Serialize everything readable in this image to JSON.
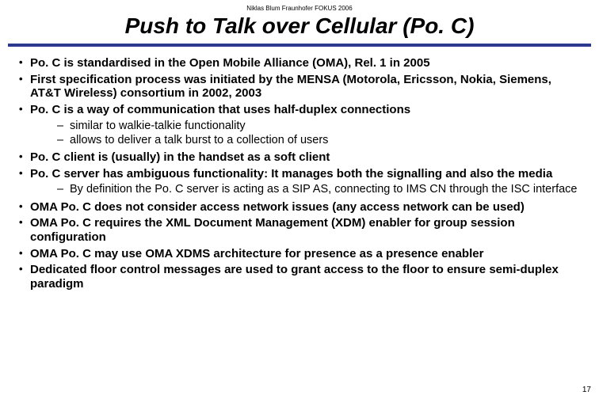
{
  "header": "Niklas Blum Fraunhofer FOKUS 2006",
  "title": "Push to Talk over Cellular (Po. C)",
  "rule_color": "#2b3a8f",
  "page_number": "17",
  "bullets": [
    {
      "text": "Po. C is standardised in the Open Mobile Alliance (OMA), Rel. 1 in 2005"
    },
    {
      "text": "First specification process was initiated by the MENSA (Motorola, Ericsson, Nokia, Siemens, AT&T Wireless) consortium in 2002, 2003"
    },
    {
      "text": "Po. C is a way of communication that uses half-duplex connections",
      "sub": [
        "similar to walkie-talkie functionality",
        "allows to deliver a talk burst to a collection of users"
      ]
    },
    {
      "text": "Po. C client is (usually) in the handset as a soft client"
    },
    {
      "text": "Po. C server has ambiguous functionality: It manages both the signalling and also the media",
      "sub": [
        "By definition the Po. C server is acting as a SIP AS, connecting to IMS CN through the ISC interface"
      ]
    },
    {
      "text": "OMA Po. C does not consider access network issues (any access network can be used)"
    },
    {
      "text": "OMA Po. C requires the XML Document Management (XDM) enabler for group session configuration"
    },
    {
      "text": "OMA Po. C may use OMA XDMS architecture for presence as a presence enabler"
    },
    {
      "text": "Dedicated floor control messages are used to grant access to the floor to ensure semi-duplex paradigm"
    }
  ]
}
